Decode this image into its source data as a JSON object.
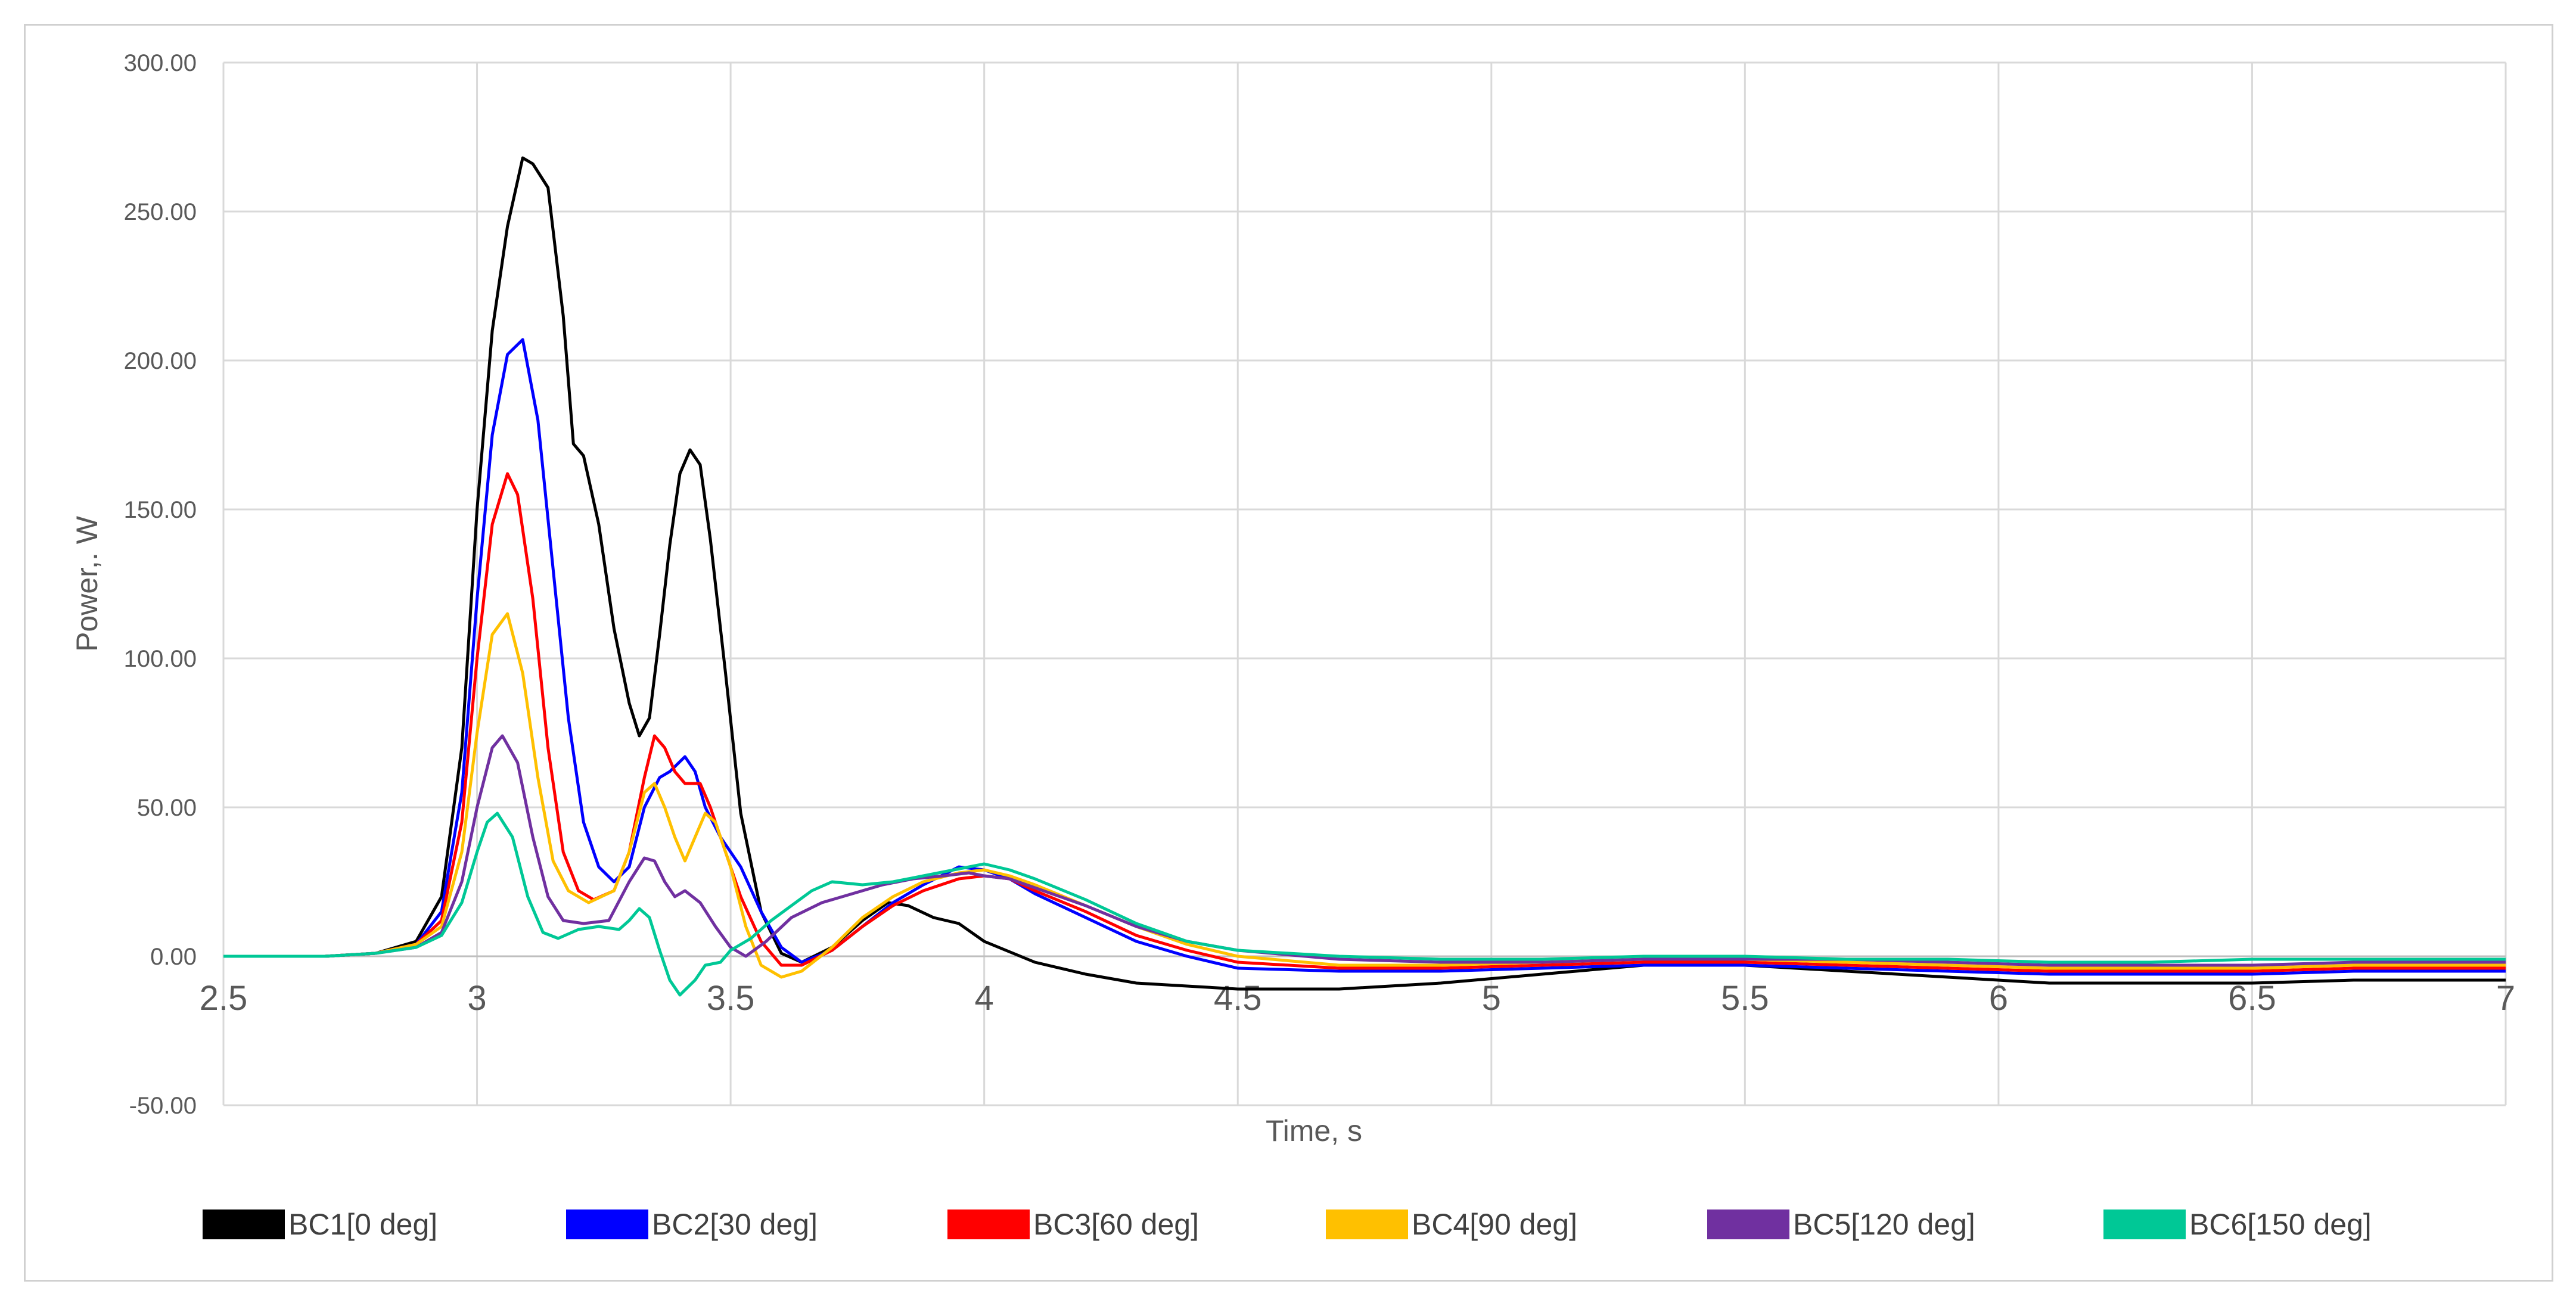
{
  "chart_data": {
    "type": "line",
    "title": "",
    "xlabel": "Time, s",
    "ylabel": "Power,. W",
    "xlim": [
      2.5,
      7
    ],
    "ylim": [
      -50,
      300
    ],
    "x_ticks": [
      "2.5",
      "3",
      "3.5",
      "4",
      "4.5",
      "5",
      "5.5",
      "6",
      "6.5",
      "7"
    ],
    "y_ticks": [
      "-50.00",
      "0.00",
      "50.00",
      "100.00",
      "150.00",
      "200.00",
      "250.00",
      "300.00"
    ],
    "grid": true,
    "legend_position": "bottom",
    "series": [
      {
        "name": "BC1[0 deg]",
        "color": "#000000",
        "points": [
          [
            2.5,
            0
          ],
          [
            2.7,
            0
          ],
          [
            2.8,
            1
          ],
          [
            2.88,
            5
          ],
          [
            2.93,
            20
          ],
          [
            2.97,
            70
          ],
          [
            3.0,
            150
          ],
          [
            3.03,
            210
          ],
          [
            3.06,
            245
          ],
          [
            3.09,
            268
          ],
          [
            3.11,
            266
          ],
          [
            3.14,
            258
          ],
          [
            3.17,
            215
          ],
          [
            3.19,
            172
          ],
          [
            3.21,
            168
          ],
          [
            3.24,
            145
          ],
          [
            3.27,
            110
          ],
          [
            3.3,
            85
          ],
          [
            3.32,
            74
          ],
          [
            3.34,
            80
          ],
          [
            3.36,
            108
          ],
          [
            3.38,
            138
          ],
          [
            3.4,
            162
          ],
          [
            3.42,
            170
          ],
          [
            3.44,
            165
          ],
          [
            3.46,
            140
          ],
          [
            3.49,
            95
          ],
          [
            3.52,
            48
          ],
          [
            3.56,
            15
          ],
          [
            3.6,
            1
          ],
          [
            3.64,
            -2
          ],
          [
            3.7,
            3
          ],
          [
            3.76,
            12
          ],
          [
            3.81,
            18
          ],
          [
            3.85,
            17
          ],
          [
            3.9,
            13
          ],
          [
            3.95,
            11
          ],
          [
            4.0,
            5
          ],
          [
            4.1,
            -2
          ],
          [
            4.2,
            -6
          ],
          [
            4.3,
            -9
          ],
          [
            4.4,
            -10
          ],
          [
            4.5,
            -11
          ],
          [
            4.7,
            -11
          ],
          [
            4.9,
            -9
          ],
          [
            5.1,
            -6
          ],
          [
            5.3,
            -3
          ],
          [
            5.5,
            -3
          ],
          [
            5.7,
            -5
          ],
          [
            5.9,
            -7
          ],
          [
            6.1,
            -9
          ],
          [
            6.3,
            -9
          ],
          [
            6.5,
            -9
          ],
          [
            6.7,
            -8
          ],
          [
            6.9,
            -8
          ],
          [
            7.0,
            -8
          ]
        ]
      },
      {
        "name": "BC2[30 deg]",
        "color": "#0000ff",
        "points": [
          [
            2.5,
            0
          ],
          [
            2.7,
            0
          ],
          [
            2.8,
            1
          ],
          [
            2.88,
            4
          ],
          [
            2.93,
            15
          ],
          [
            2.97,
            55
          ],
          [
            3.0,
            120
          ],
          [
            3.03,
            175
          ],
          [
            3.06,
            202
          ],
          [
            3.09,
            207
          ],
          [
            3.12,
            180
          ],
          [
            3.15,
            130
          ],
          [
            3.18,
            80
          ],
          [
            3.21,
            45
          ],
          [
            3.24,
            30
          ],
          [
            3.27,
            25
          ],
          [
            3.3,
            30
          ],
          [
            3.33,
            50
          ],
          [
            3.36,
            60
          ],
          [
            3.38,
            62
          ],
          [
            3.41,
            67
          ],
          [
            3.43,
            62
          ],
          [
            3.45,
            50
          ],
          [
            3.48,
            40
          ],
          [
            3.52,
            30
          ],
          [
            3.56,
            15
          ],
          [
            3.6,
            3
          ],
          [
            3.64,
            -2
          ],
          [
            3.7,
            2
          ],
          [
            3.76,
            10
          ],
          [
            3.82,
            18
          ],
          [
            3.88,
            24
          ],
          [
            3.95,
            30
          ],
          [
            4.0,
            29
          ],
          [
            4.05,
            26
          ],
          [
            4.1,
            21
          ],
          [
            4.2,
            13
          ],
          [
            4.3,
            5
          ],
          [
            4.4,
            0
          ],
          [
            4.5,
            -4
          ],
          [
            4.7,
            -5
          ],
          [
            4.9,
            -5
          ],
          [
            5.1,
            -4
          ],
          [
            5.3,
            -3
          ],
          [
            5.5,
            -3
          ],
          [
            5.7,
            -4
          ],
          [
            5.9,
            -5
          ],
          [
            6.1,
            -6
          ],
          [
            6.3,
            -6
          ],
          [
            6.5,
            -6
          ],
          [
            6.7,
            -5
          ],
          [
            6.9,
            -5
          ],
          [
            7.0,
            -5
          ]
        ]
      },
      {
        "name": "BC3[60 deg]",
        "color": "#ff0000",
        "points": [
          [
            2.5,
            0
          ],
          [
            2.7,
            0
          ],
          [
            2.8,
            1
          ],
          [
            2.88,
            4
          ],
          [
            2.93,
            12
          ],
          [
            2.97,
            45
          ],
          [
            3.0,
            100
          ],
          [
            3.03,
            145
          ],
          [
            3.06,
            162
          ],
          [
            3.08,
            155
          ],
          [
            3.11,
            120
          ],
          [
            3.14,
            70
          ],
          [
            3.17,
            35
          ],
          [
            3.2,
            22
          ],
          [
            3.23,
            19
          ],
          [
            3.27,
            22
          ],
          [
            3.3,
            35
          ],
          [
            3.33,
            60
          ],
          [
            3.35,
            74
          ],
          [
            3.37,
            70
          ],
          [
            3.39,
            62
          ],
          [
            3.41,
            58
          ],
          [
            3.44,
            58
          ],
          [
            3.46,
            50
          ],
          [
            3.49,
            35
          ],
          [
            3.52,
            20
          ],
          [
            3.56,
            5
          ],
          [
            3.6,
            -3
          ],
          [
            3.64,
            -3
          ],
          [
            3.7,
            2
          ],
          [
            3.76,
            10
          ],
          [
            3.82,
            17
          ],
          [
            3.88,
            22
          ],
          [
            3.95,
            26
          ],
          [
            4.0,
            27
          ],
          [
            4.05,
            26
          ],
          [
            4.1,
            22
          ],
          [
            4.2,
            15
          ],
          [
            4.3,
            7
          ],
          [
            4.4,
            2
          ],
          [
            4.5,
            -2
          ],
          [
            4.7,
            -4
          ],
          [
            4.9,
            -4
          ],
          [
            5.1,
            -3
          ],
          [
            5.3,
            -2
          ],
          [
            5.5,
            -2
          ],
          [
            5.7,
            -3
          ],
          [
            5.9,
            -4
          ],
          [
            6.1,
            -5
          ],
          [
            6.3,
            -5
          ],
          [
            6.5,
            -5
          ],
          [
            6.7,
            -4
          ],
          [
            6.9,
            -4
          ],
          [
            7.0,
            -4
          ]
        ]
      },
      {
        "name": "BC4[90 deg]",
        "color": "#ffc000",
        "points": [
          [
            2.5,
            0
          ],
          [
            2.7,
            0
          ],
          [
            2.8,
            1
          ],
          [
            2.88,
            4
          ],
          [
            2.93,
            10
          ],
          [
            2.97,
            35
          ],
          [
            3.0,
            75
          ],
          [
            3.03,
            108
          ],
          [
            3.06,
            115
          ],
          [
            3.09,
            95
          ],
          [
            3.12,
            60
          ],
          [
            3.15,
            32
          ],
          [
            3.18,
            22
          ],
          [
            3.22,
            18
          ],
          [
            3.27,
            22
          ],
          [
            3.3,
            35
          ],
          [
            3.33,
            55
          ],
          [
            3.35,
            58
          ],
          [
            3.37,
            50
          ],
          [
            3.39,
            40
          ],
          [
            3.41,
            32
          ],
          [
            3.43,
            40
          ],
          [
            3.45,
            48
          ],
          [
            3.47,
            45
          ],
          [
            3.5,
            30
          ],
          [
            3.53,
            10
          ],
          [
            3.56,
            -3
          ],
          [
            3.6,
            -7
          ],
          [
            3.64,
            -5
          ],
          [
            3.7,
            3
          ],
          [
            3.76,
            13
          ],
          [
            3.82,
            20
          ],
          [
            3.88,
            25
          ],
          [
            3.95,
            28
          ],
          [
            4.0,
            29
          ],
          [
            4.05,
            27
          ],
          [
            4.1,
            24
          ],
          [
            4.2,
            17
          ],
          [
            4.3,
            10
          ],
          [
            4.4,
            4
          ],
          [
            4.5,
            0
          ],
          [
            4.7,
            -3
          ],
          [
            4.9,
            -3
          ],
          [
            5.1,
            -2
          ],
          [
            5.3,
            -1
          ],
          [
            5.5,
            -1
          ],
          [
            5.7,
            -2
          ],
          [
            5.9,
            -3
          ],
          [
            6.1,
            -4
          ],
          [
            6.3,
            -4
          ],
          [
            6.5,
            -4
          ],
          [
            6.7,
            -3
          ],
          [
            6.9,
            -3
          ],
          [
            7.0,
            -3
          ]
        ]
      },
      {
        "name": "BC5[120 deg]",
        "color": "#7030a0",
        "points": [
          [
            2.5,
            0
          ],
          [
            2.7,
            0
          ],
          [
            2.8,
            1
          ],
          [
            2.88,
            3
          ],
          [
            2.93,
            8
          ],
          [
            2.97,
            25
          ],
          [
            3.0,
            50
          ],
          [
            3.03,
            70
          ],
          [
            3.05,
            74
          ],
          [
            3.08,
            65
          ],
          [
            3.11,
            40
          ],
          [
            3.14,
            20
          ],
          [
            3.17,
            12
          ],
          [
            3.21,
            11
          ],
          [
            3.26,
            12
          ],
          [
            3.3,
            25
          ],
          [
            3.33,
            33
          ],
          [
            3.35,
            32
          ],
          [
            3.37,
            25
          ],
          [
            3.39,
            20
          ],
          [
            3.41,
            22
          ],
          [
            3.44,
            18
          ],
          [
            3.47,
            10
          ],
          [
            3.5,
            3
          ],
          [
            3.53,
            0
          ],
          [
            3.57,
            5
          ],
          [
            3.62,
            13
          ],
          [
            3.68,
            18
          ],
          [
            3.74,
            21
          ],
          [
            3.8,
            24
          ],
          [
            3.86,
            26
          ],
          [
            3.92,
            27
          ],
          [
            3.97,
            28
          ],
          [
            4.0,
            27
          ],
          [
            4.05,
            26
          ],
          [
            4.1,
            23
          ],
          [
            4.2,
            17
          ],
          [
            4.3,
            10
          ],
          [
            4.4,
            5
          ],
          [
            4.5,
            2
          ],
          [
            4.7,
            -1
          ],
          [
            4.9,
            -2
          ],
          [
            5.1,
            -2
          ],
          [
            5.3,
            -1
          ],
          [
            5.5,
            -1
          ],
          [
            5.7,
            -1
          ],
          [
            5.9,
            -2
          ],
          [
            6.1,
            -3
          ],
          [
            6.3,
            -3
          ],
          [
            6.5,
            -3
          ],
          [
            6.7,
            -2
          ],
          [
            6.9,
            -2
          ],
          [
            7.0,
            -2
          ]
        ]
      },
      {
        "name": "BC6[150 deg]",
        "color": "#00c896",
        "points": [
          [
            2.5,
            0
          ],
          [
            2.7,
            0
          ],
          [
            2.8,
            1
          ],
          [
            2.88,
            3
          ],
          [
            2.93,
            7
          ],
          [
            2.97,
            18
          ],
          [
            3.0,
            35
          ],
          [
            3.02,
            45
          ],
          [
            3.04,
            48
          ],
          [
            3.07,
            40
          ],
          [
            3.1,
            20
          ],
          [
            3.13,
            8
          ],
          [
            3.16,
            6
          ],
          [
            3.2,
            9
          ],
          [
            3.24,
            10
          ],
          [
            3.28,
            9
          ],
          [
            3.3,
            12
          ],
          [
            3.32,
            16
          ],
          [
            3.34,
            13
          ],
          [
            3.36,
            2
          ],
          [
            3.38,
            -8
          ],
          [
            3.4,
            -13
          ],
          [
            3.43,
            -8
          ],
          [
            3.45,
            -3
          ],
          [
            3.48,
            -2
          ],
          [
            3.5,
            2
          ],
          [
            3.54,
            6
          ],
          [
            3.58,
            12
          ],
          [
            3.62,
            17
          ],
          [
            3.66,
            22
          ],
          [
            3.7,
            25
          ],
          [
            3.76,
            24
          ],
          [
            3.82,
            25
          ],
          [
            3.88,
            27
          ],
          [
            3.94,
            29
          ],
          [
            4.0,
            31
          ],
          [
            4.05,
            29
          ],
          [
            4.1,
            26
          ],
          [
            4.2,
            19
          ],
          [
            4.3,
            11
          ],
          [
            4.4,
            5
          ],
          [
            4.5,
            2
          ],
          [
            4.7,
            0
          ],
          [
            4.9,
            -1
          ],
          [
            5.1,
            -1
          ],
          [
            5.3,
            0
          ],
          [
            5.5,
            0
          ],
          [
            5.7,
            -1
          ],
          [
            5.9,
            -1
          ],
          [
            6.1,
            -2
          ],
          [
            6.3,
            -2
          ],
          [
            6.5,
            -1
          ],
          [
            6.7,
            -1
          ],
          [
            6.9,
            -1
          ],
          [
            7.0,
            -1
          ]
        ]
      }
    ]
  }
}
